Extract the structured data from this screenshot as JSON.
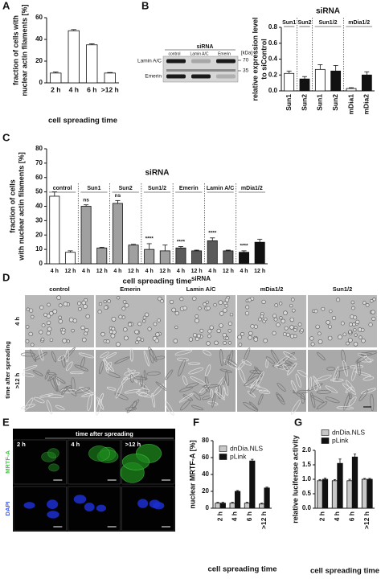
{
  "panel_labels": [
    "A",
    "B",
    "C",
    "D",
    "E",
    "F",
    "G"
  ],
  "chart_data": [
    {
      "type": "bar",
      "ylabel": [
        "fraction of cells with",
        "nuclear actin filaments [%]"
      ],
      "xlabel": "cell spreading time",
      "categories": [
        "2 h",
        "4 h",
        "6 h",
        ">12 h"
      ],
      "values": [
        9,
        48,
        35,
        9
      ],
      "errors": [
        1,
        1,
        1,
        0.5
      ],
      "color": "#ffffff",
      "ylim": [
        0,
        60
      ],
      "yticks": [
        0,
        20,
        40,
        60
      ]
    },
    {
      "type": "bar",
      "title": "siRNA",
      "ylabel": [
        "relative expression level",
        "to siControl"
      ],
      "rotated_labels": true,
      "groups": [
        {
          "label": "Sun1",
          "categories": [
            "Sun1"
          ],
          "values": [
            0.22
          ],
          "errors": [
            0.03
          ],
          "colors": [
            "#ffffff"
          ]
        },
        {
          "label": "Sun2",
          "categories": [
            "Sun2"
          ],
          "values": [
            0.15
          ],
          "errors": [
            0.03
          ],
          "colors": [
            "#111111"
          ]
        },
        {
          "label": "Sun1/2",
          "categories": [
            "Sun1",
            "Sun2"
          ],
          "values": [
            0.27,
            0.25
          ],
          "errors": [
            0.06,
            0.07
          ],
          "colors": [
            "#ffffff",
            "#111111"
          ]
        },
        {
          "label": "mDia1/2",
          "categories": [
            "mDia1",
            "mDia2"
          ],
          "values": [
            0.03,
            0.2
          ],
          "errors": [
            0.01,
            0.04
          ],
          "colors": [
            "#ffffff",
            "#111111"
          ]
        }
      ],
      "ylim": [
        0,
        0.8
      ],
      "yticks": [
        {
          "value": 0,
          "label": "0.0"
        },
        0.2,
        0.4,
        0.6,
        0.8
      ]
    },
    {
      "type": "bar",
      "title": "siRNA",
      "ylabel": [
        "fraction of cells",
        "with nuclear actin filaments [%]"
      ],
      "xlabel": "cell spreading time",
      "groups": [
        {
          "label": "control",
          "categories": [
            "4 h",
            "12 h"
          ],
          "values": [
            47,
            8
          ],
          "errors": [
            3,
            1
          ],
          "colors": [
            "#ffffff",
            "#ffffff"
          ]
        },
        {
          "label": "Sun1",
          "categories": [
            "4 h",
            "12 h"
          ],
          "values": [
            40,
            11
          ],
          "errors": [
            1,
            0.5
          ],
          "colors": [
            "#a0a0a0",
            "#a0a0a0"
          ],
          "annotation": "ns"
        },
        {
          "label": "Sun2",
          "categories": [
            "4 h",
            "12 h"
          ],
          "values": [
            42,
            13
          ],
          "errors": [
            2,
            0.5
          ],
          "colors": [
            "#a0a0a0",
            "#a0a0a0"
          ],
          "annotation": "ns"
        },
        {
          "label": "Sun1/2",
          "categories": [
            "4 h",
            "12 h"
          ],
          "values": [
            10,
            9
          ],
          "errors": [
            4,
            4
          ],
          "colors": [
            "#a0a0a0",
            "#a0a0a0"
          ],
          "annotation": "****"
        },
        {
          "label": "Emerin",
          "categories": [
            "4 h",
            "12 h"
          ],
          "values": [
            11,
            9
          ],
          "errors": [
            1,
            0.5
          ],
          "colors": [
            "#5a5a5a",
            "#5a5a5a"
          ],
          "annotation": "****"
        },
        {
          "label": "Lamin A/C",
          "categories": [
            "4 h",
            "12 h"
          ],
          "values": [
            16,
            9
          ],
          "errors": [
            2,
            0.5
          ],
          "colors": [
            "#5a5a5a",
            "#5a5a5a"
          ],
          "annotation": "****"
        },
        {
          "label": "mDia1/2",
          "categories": [
            "4 h",
            "12 h"
          ],
          "values": [
            8,
            15
          ],
          "errors": [
            1,
            2
          ],
          "colors": [
            "#111111",
            "#111111"
          ],
          "annotation": "****"
        }
      ],
      "ylim": [
        0,
        80
      ],
      "yticks": [
        0,
        10,
        20,
        30,
        40,
        50,
        60,
        70,
        80
      ]
    },
    {
      "type": "bar",
      "ylabel": [
        "nuclear MRTF-A [%]"
      ],
      "xlabel": "cell spreading time",
      "rotated_labels": true,
      "legend": "upper left",
      "categories": [
        "2 h",
        "4 h",
        "6 h",
        ">12 h"
      ],
      "series": [
        {
          "name": "dnDia.NLS",
          "color": "#c8c8c8",
          "values": [
            6,
            6,
            6,
            5
          ],
          "errors": [
            1,
            1,
            1,
            1
          ]
        },
        {
          "name": "pLink",
          "color": "#111111",
          "values": [
            6,
            20,
            56,
            24
          ],
          "errors": [
            1,
            1,
            2,
            1
          ]
        }
      ],
      "ylim": [
        0,
        80
      ],
      "yticks": [
        0,
        20,
        40,
        60,
        80
      ]
    },
    {
      "type": "bar",
      "ylabel": [
        "relative luciferase activity"
      ],
      "xlabel": "cell spreading time",
      "rotated_labels": true,
      "legend": "above",
      "categories": [
        "2 h",
        "4 h",
        "6 h",
        ">12 h"
      ],
      "series": [
        {
          "name": "dnDia.NLS",
          "color": "#c8c8c8",
          "values": [
            0.95,
            0.95,
            0.95,
            1.0
          ],
          "errors": [
            0.04,
            0.04,
            0.05,
            0.03
          ]
        },
        {
          "name": "pLink",
          "color": "#111111",
          "values": [
            1.0,
            1.55,
            1.77,
            1.0
          ],
          "errors": [
            0.04,
            0.15,
            0.1,
            0.03
          ]
        }
      ],
      "ylim": [
        0,
        2
      ],
      "yticks": [
        {
          "value": 0,
          "label": "0.0"
        },
        0.5,
        {
          "value": 1,
          "label": "1.0"
        },
        1.5,
        {
          "value": 2,
          "label": "2.0"
        }
      ]
    }
  ],
  "blot": {
    "title": "siRNA",
    "lanes": [
      "control",
      "Lamin A/C",
      "Emerin"
    ],
    "unit": "[kDa]",
    "rows": [
      "Lamin A/C",
      "Emerin"
    ],
    "markers": [
      "70",
      "35"
    ]
  },
  "micrographs": {
    "title": "siRNA",
    "columns": [
      "control",
      "Emerin",
      "Lamin A/C",
      "mDia1/2",
      "Sun1/2"
    ],
    "rows": [
      "4 h",
      ">12 h"
    ],
    "row_title": "time after spreading"
  },
  "fluorescence": {
    "title": "time after spreading",
    "columns": [
      "2 h",
      "4 h",
      ">12 h"
    ],
    "rows": [
      "MRTF-A",
      "DAPI"
    ]
  }
}
